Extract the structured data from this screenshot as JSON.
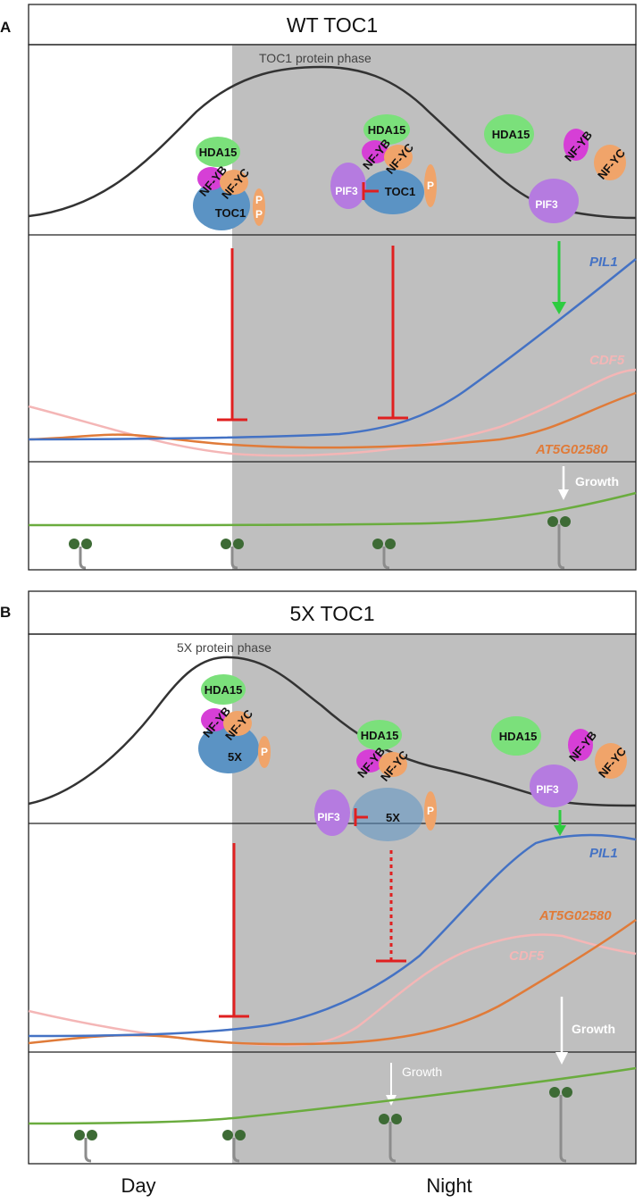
{
  "panels": [
    {
      "letter": "A",
      "title": "WT TOC1",
      "phase_label": "TOC1 protein phase",
      "complex_left": [
        "HDA15",
        "NF-YB",
        "NF-YC",
        "TOC1",
        "P",
        "P"
      ],
      "complex_mid": [
        "HDA15",
        "NF-YB",
        "NF-YC",
        "PIF3",
        "TOC1",
        "P"
      ],
      "complex_right": [
        "HDA15",
        "NF-YB",
        "NF-YC",
        "PIF3"
      ],
      "genes": [
        "PIL1",
        "CDF5",
        "AT5G02580"
      ],
      "growth": "Growth"
    },
    {
      "letter": "B",
      "title": "5X TOC1",
      "phase_label": "5X protein phase",
      "complex_left": [
        "HDA15",
        "NF-YB",
        "NF-YC",
        "5X",
        "P"
      ],
      "complex_mid": [
        "HDA15",
        "NF-YB",
        "NF-YC",
        "PIF3",
        "5X",
        "P"
      ],
      "complex_right": [
        "HDA15",
        "NF-YB",
        "NF-YC",
        "PIF3"
      ],
      "genes": [
        "PIL1",
        "AT5G02580",
        "CDF5"
      ],
      "growth_mid": "Growth",
      "growth_right": "Growth"
    }
  ],
  "x_axis": {
    "day": "Day",
    "night": "Night"
  },
  "colors": {
    "night": "#bfbfbf",
    "pil1": "#4472c4",
    "cdf5": "#f4b6b6",
    "at5g02580": "#e07b39",
    "repression": "#e02020",
    "activation": "#2ecc40",
    "growth_curve": "#6aac3e",
    "hda15": "#7be07b",
    "nfyb": "#d63fd6",
    "nfyc": "#f0a46a",
    "toc1": "#5b93c4",
    "pif3": "#b57be0"
  }
}
